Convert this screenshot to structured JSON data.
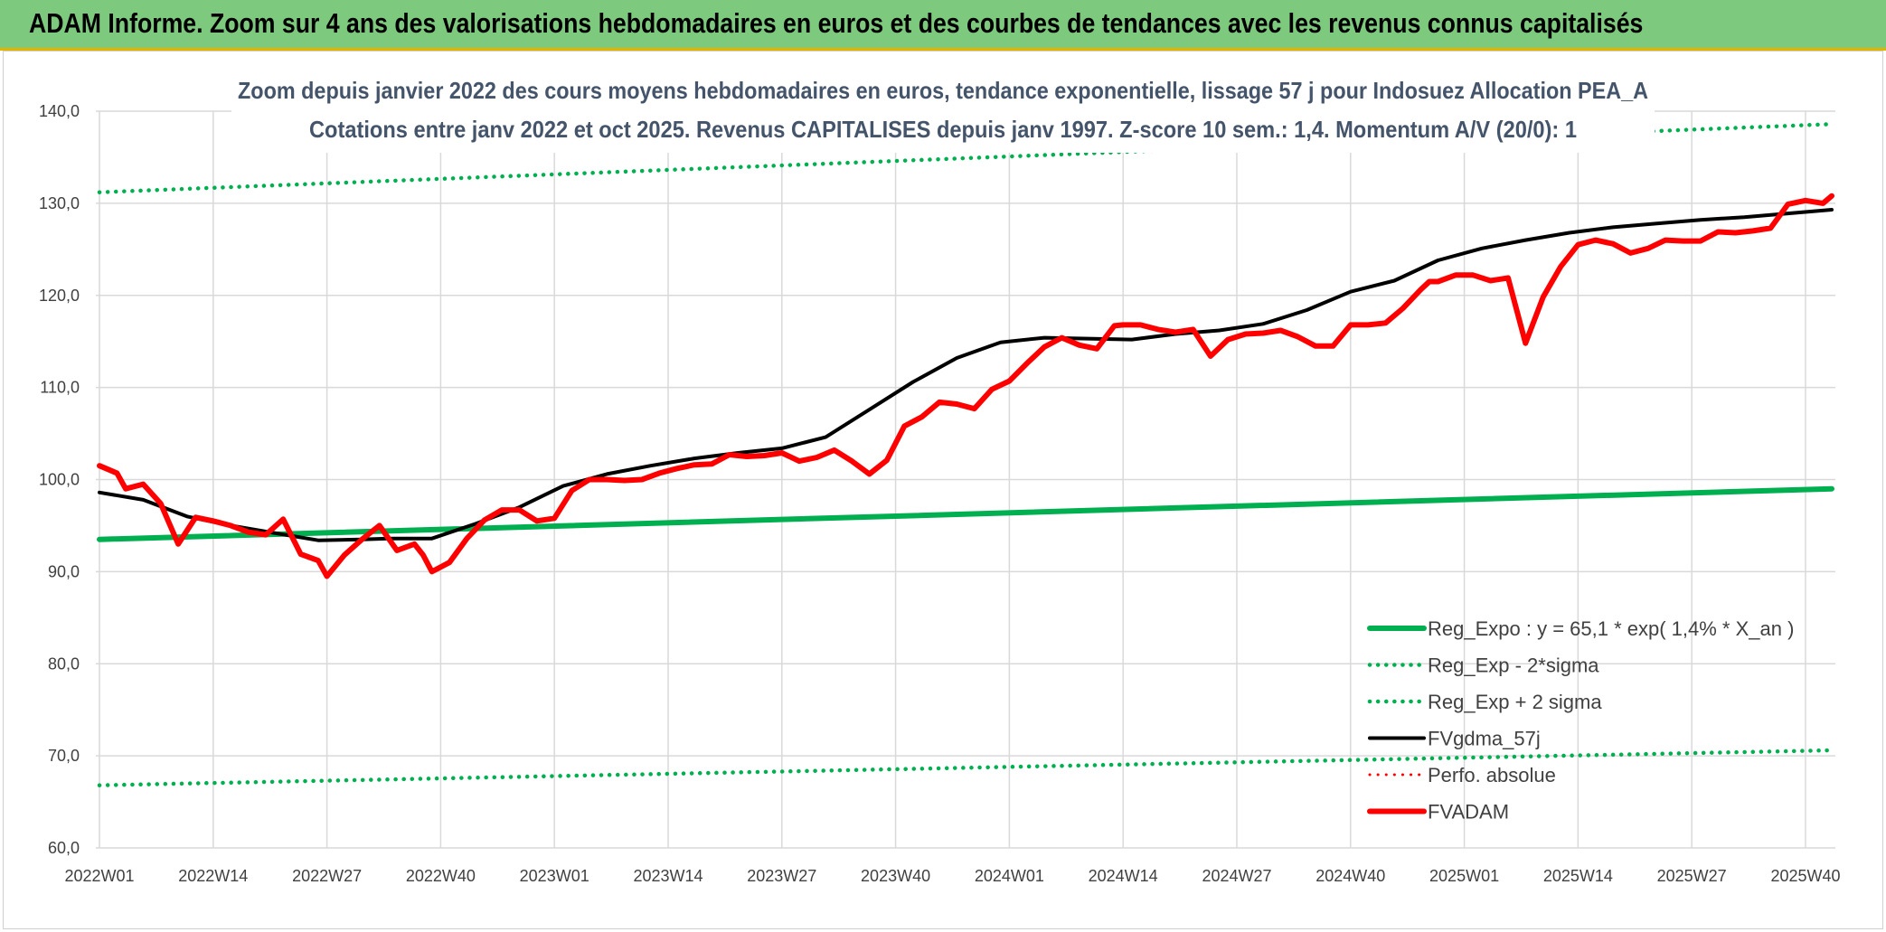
{
  "banner": {
    "title": "ADAM Informe. Zoom sur 4 ans des valorisations hebdomadaires en euros et des courbes de tendances avec les revenus connus capitalisés"
  },
  "chart_data": {
    "type": "line",
    "title_line1": "Zoom depuis janvier 2022 des cours moyens hebdomadaires en euros, tendance exponentielle, lissage 57 j pour Indosuez Allocation PEA_A",
    "title_line2": "Cotations entre janv 2022 et oct 2025. Revenus CAPITALISES depuis janv 1997. Z-score 10 sem.: 1,4. Momentum A/V (20/0): 1",
    "ylim": [
      60,
      140
    ],
    "yticks": [
      "60,0",
      "70,0",
      "80,0",
      "90,0",
      "100,0",
      "110,0",
      "120,0",
      "130,0",
      "140,0"
    ],
    "xtick_labels": [
      "2022W01",
      "2022W14",
      "2022W27",
      "2022W40",
      "2023W01",
      "2023W14",
      "2023W27",
      "2023W40",
      "2024W01",
      "2024W14",
      "2024W27",
      "2024W40",
      "2025W01",
      "2025W14",
      "2025W27",
      "2025W40"
    ],
    "n_weeks": 199,
    "grid": true,
    "legend_position": "bottom-right",
    "series": [
      {
        "name": "Reg_Expo : y = 65,1 * exp( 1,4% *  X_an )",
        "color": "#00b050",
        "style": "solid",
        "x": [
          0,
          198
        ],
        "values": [
          93.5,
          99.0
        ]
      },
      {
        "name": "Reg_Exp - 2*sigma",
        "color": "#00b050",
        "style": "dotted",
        "x": [
          0,
          198
        ],
        "values": [
          66.8,
          70.6
        ]
      },
      {
        "name": "Reg_Exp + 2 sigma",
        "color": "#00b050",
        "style": "dotted",
        "x": [
          0,
          198
        ],
        "values": [
          131.2,
          138.6
        ]
      },
      {
        "name": "FVgdma_57j",
        "color": "#000000",
        "style": "solid",
        "x": [
          0,
          5,
          10,
          15,
          20,
          25,
          30,
          33,
          38,
          43,
          48,
          53,
          58,
          63,
          68,
          73,
          78,
          83,
          88,
          93,
          98,
          103,
          108,
          113,
          118,
          123,
          128,
          133,
          138,
          143,
          148,
          153,
          158,
          163,
          168,
          173,
          178,
          183,
          188,
          193,
          198
        ],
        "values": [
          98.6,
          97.8,
          96.0,
          95.0,
          94.2,
          93.4,
          93.5,
          93.6,
          93.6,
          95.2,
          97.0,
          99.3,
          100.6,
          101.5,
          102.3,
          102.9,
          103.4,
          104.6,
          107.6,
          110.6,
          113.2,
          114.9,
          115.4,
          115.3,
          115.2,
          115.8,
          116.2,
          116.9,
          118.4,
          120.4,
          121.6,
          123.8,
          125.1,
          126.0,
          126.8,
          127.4,
          127.8,
          128.2,
          128.5,
          128.9,
          129.3
        ]
      },
      {
        "name": "Perfo. absolue",
        "color": "#ff0000",
        "style": "dotted",
        "x": [],
        "values": []
      },
      {
        "name": "FVADAM",
        "color": "#ff0000",
        "style": "solid",
        "x": [
          0,
          2,
          3,
          5,
          7,
          9,
          11,
          13,
          15,
          17,
          19,
          21,
          23,
          25,
          26,
          28,
          30,
          32,
          34,
          36,
          37,
          38,
          40,
          42,
          44,
          46,
          48,
          50,
          52,
          54,
          56,
          58,
          60,
          62,
          64,
          66,
          68,
          70,
          72,
          74,
          76,
          78,
          80,
          82,
          84,
          86,
          88,
          90,
          92,
          94,
          96,
          98,
          100,
          102,
          104,
          106,
          108,
          110,
          112,
          114,
          116,
          117,
          119,
          121,
          123,
          125,
          127,
          129,
          131,
          133,
          135,
          137,
          139,
          141,
          143,
          145,
          147,
          149,
          151,
          152,
          153,
          155,
          157,
          159,
          161,
          163,
          165,
          167,
          169,
          171,
          173,
          175,
          177,
          179,
          181,
          183,
          185,
          187,
          189,
          191,
          193,
          195,
          197,
          198
        ],
        "values": [
          101.5,
          100.7,
          99.0,
          99.5,
          97.4,
          93.0,
          95.9,
          95.5,
          95.0,
          94.3,
          94.0,
          95.7,
          91.9,
          91.2,
          89.5,
          91.8,
          93.5,
          95.0,
          92.3,
          93.0,
          91.8,
          90.0,
          91.0,
          93.6,
          95.6,
          96.7,
          96.7,
          95.5,
          95.8,
          98.8,
          100.0,
          100.0,
          99.9,
          100.0,
          100.7,
          101.2,
          101.6,
          101.7,
          102.7,
          102.5,
          102.6,
          102.9,
          102.0,
          102.4,
          103.2,
          102.0,
          100.6,
          102.1,
          105.8,
          106.8,
          108.4,
          108.2,
          107.7,
          109.8,
          110.7,
          112.6,
          114.4,
          115.4,
          114.6,
          114.2,
          116.7,
          116.8,
          116.8,
          116.3,
          116.0,
          116.3,
          113.4,
          115.2,
          115.8,
          115.9,
          116.2,
          115.5,
          114.5,
          114.5,
          116.8,
          116.8,
          117.0,
          118.6,
          120.6,
          121.5,
          121.5,
          122.2,
          122.2,
          121.6,
          121.9,
          114.8,
          119.8,
          123.1,
          125.5,
          126.0,
          125.6,
          124.6,
          125.1,
          126.0,
          125.9,
          125.9,
          126.9,
          126.8,
          127.0,
          127.3,
          129.9,
          130.3,
          130.0,
          130.8
        ]
      }
    ]
  }
}
